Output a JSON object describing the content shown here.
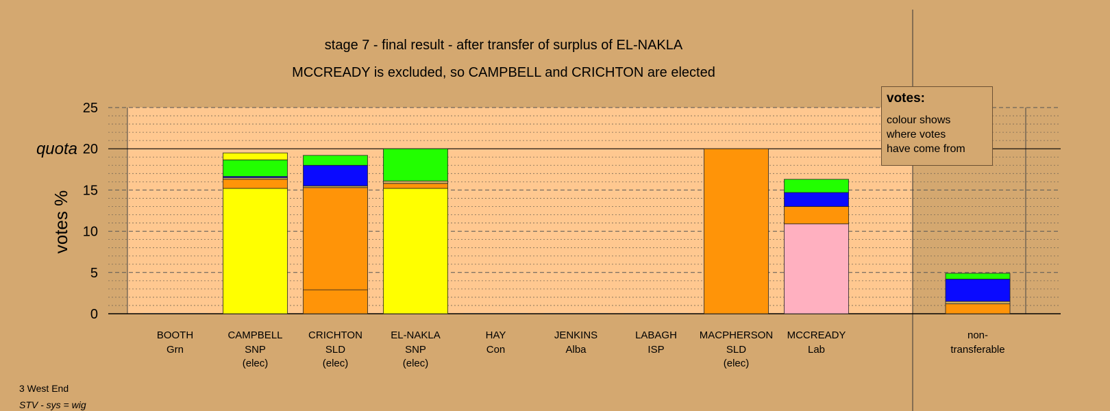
{
  "titles": {
    "line1": "stage 7 - final result - after transfer of surplus of EL-NAKLA",
    "line2": "MCCREADY is excluded, so CAMPBELL and CRICHTON are elected"
  },
  "legend": {
    "title": "votes:",
    "lines": [
      "colour shows",
      "where votes",
      "have come from"
    ]
  },
  "footer": {
    "ward": "3 West End",
    "system": "STV - sys = wig"
  },
  "chart_data": {
    "type": "bar",
    "stacked": true,
    "ylabel": "votes %",
    "ylim": [
      0,
      25
    ],
    "yticks": [
      0,
      5,
      10,
      15,
      20,
      25
    ],
    "quota": {
      "label": "quota",
      "value": 20
    },
    "grid": "dotted minor every 1, dashed major every 5",
    "colors": {
      "SNP": "#FFFF00",
      "SLD": "#FF9408",
      "Grn": "#22FF00",
      "Con": "#0A0AFF",
      "Lab": "#FFB0C0",
      "other": "#D0B060",
      "plot_bg": "#FFC890"
    },
    "candidates": [
      {
        "name": "BOOTH",
        "party": "Grn",
        "status": "",
        "segments": []
      },
      {
        "name": "CAMPBELL",
        "party": "SNP",
        "status": "(elec)",
        "segments": [
          {
            "color": "SNP",
            "value": 15.2
          },
          {
            "color": "SLD",
            "value": 1.1
          },
          {
            "color": "other",
            "value": 0.2
          },
          {
            "color": "Con",
            "value": 0.15
          },
          {
            "color": "Grn",
            "value": 2.0
          },
          {
            "color": "SNP",
            "value": 0.85
          }
        ]
      },
      {
        "name": "CRICHTON",
        "party": "SLD",
        "status": "(elec)",
        "segments": [
          {
            "color": "SLD",
            "value": 2.9
          },
          {
            "color": "SLD",
            "value": 12.4
          },
          {
            "color": "other",
            "value": 0.2
          },
          {
            "color": "Con",
            "value": 2.5
          },
          {
            "color": "Grn",
            "value": 1.2
          }
        ]
      },
      {
        "name": "EL-NAKLA",
        "party": "SNP",
        "status": "(elec)",
        "segments": [
          {
            "color": "SNP",
            "value": 15.2
          },
          {
            "color": "SLD",
            "value": 0.6
          },
          {
            "color": "other",
            "value": 0.3
          },
          {
            "color": "Grn",
            "value": 3.9
          }
        ]
      },
      {
        "name": "HAY",
        "party": "Con",
        "status": "",
        "segments": []
      },
      {
        "name": "JENKINS",
        "party": "Alba",
        "status": "",
        "segments": []
      },
      {
        "name": "LABAGH",
        "party": "ISP",
        "status": "",
        "segments": []
      },
      {
        "name": "MACPHERSON",
        "party": "SLD",
        "status": "(elec)",
        "segments": [
          {
            "color": "SLD",
            "value": 20.0
          }
        ]
      },
      {
        "name": "MCCREADY",
        "party": "Lab",
        "status": "",
        "segments": [
          {
            "color": "Lab",
            "value": 10.9
          },
          {
            "color": "SLD",
            "value": 2.1
          },
          {
            "color": "Con",
            "value": 1.7
          },
          {
            "color": "Grn",
            "value": 1.6
          }
        ]
      }
    ],
    "nontransferable": {
      "label1": "non-",
      "label2": "transferable",
      "segments": [
        {
          "color": "SLD",
          "value": 1.2
        },
        {
          "color": "other",
          "value": 0.3
        },
        {
          "color": "Con",
          "value": 2.7
        },
        {
          "color": "Grn",
          "value": 0.7
        }
      ]
    }
  }
}
